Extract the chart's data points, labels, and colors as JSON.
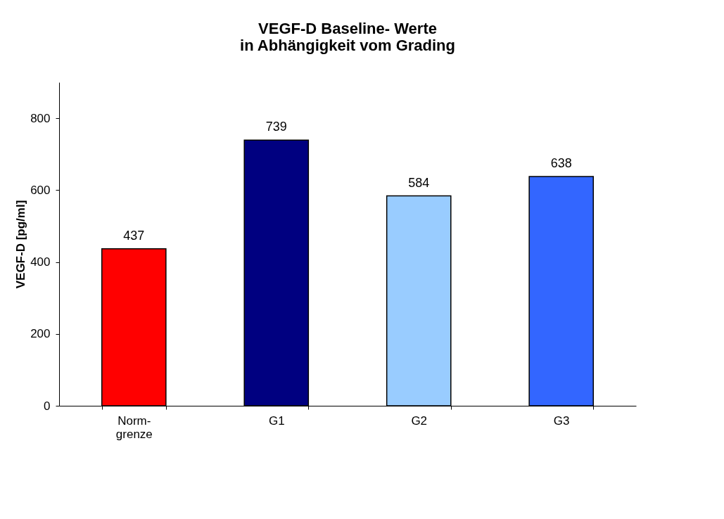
{
  "chart_data": {
    "type": "bar",
    "title": [
      "VEGF-D Baseline- Werte",
      "in Abhängigkeit vom Grading"
    ],
    "ylabel": "VEGF-D  [pg/ml]",
    "categories": [
      "Norm-grenze",
      "G1",
      "G2",
      "G3"
    ],
    "values": [
      437,
      739,
      584,
      638
    ],
    "colors": [
      "#ff0000",
      "#000080",
      "#99ccff",
      "#3366ff"
    ],
    "ylim": [
      0,
      900
    ],
    "yticks": [
      0,
      200,
      400,
      600,
      800
    ],
    "grid": false,
    "data_labels": true
  }
}
